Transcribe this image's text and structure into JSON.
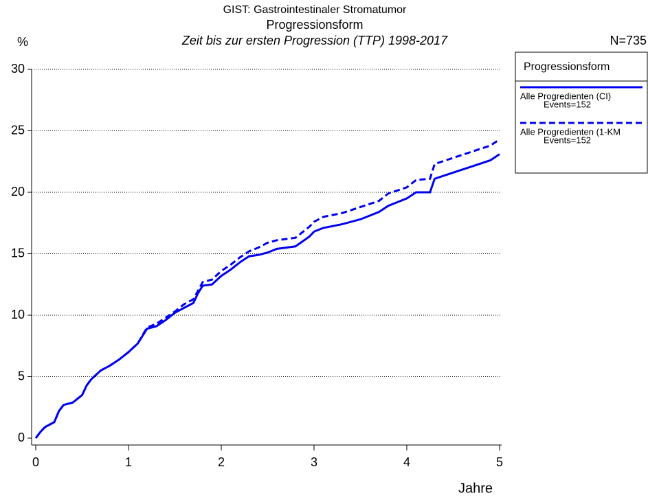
{
  "chart_data": {
    "type": "line",
    "title": "GIST: Gastrointestinaler Stromatumor",
    "subtitle": "Progressionsform",
    "subtitle2": "Zeit bis zur ersten Progression (TTP) 1998-2017",
    "y_label": "%",
    "x_label": "Jahre",
    "n_label": "N=735",
    "legend_title": "Progressionsform",
    "x": [
      0,
      0.05,
      0.1,
      0.2,
      0.25,
      0.3,
      0.4,
      0.5,
      0.55,
      0.6,
      0.7,
      0.8,
      0.9,
      1.0,
      1.1,
      1.2,
      1.3,
      1.4,
      1.5,
      1.6,
      1.7,
      1.75,
      1.8,
      1.9,
      2.0,
      2.1,
      2.2,
      2.3,
      2.4,
      2.5,
      2.6,
      2.8,
      2.95,
      3.0,
      3.1,
      3.3,
      3.5,
      3.7,
      3.8,
      4.0,
      4.1,
      4.25,
      4.3,
      4.5,
      4.7,
      4.9,
      5.0
    ],
    "series": [
      {
        "name": "Alle Progredienten (CI)",
        "events_label": "Events=152",
        "color": "#0000ee",
        "dash": false,
        "values": [
          0,
          0.5,
          0.9,
          1.3,
          2.2,
          2.7,
          2.9,
          3.5,
          4.3,
          4.8,
          5.5,
          5.9,
          6.4,
          7.0,
          7.7,
          8.9,
          9.1,
          9.6,
          10.2,
          10.6,
          11.0,
          11.8,
          12.4,
          12.5,
          13.2,
          13.7,
          14.3,
          14.8,
          14.9,
          15.1,
          15.4,
          15.6,
          16.4,
          16.8,
          17.1,
          17.4,
          17.8,
          18.4,
          18.9,
          19.5,
          20.0,
          20.0,
          21.1,
          21.6,
          22.1,
          22.6,
          23.1
        ]
      },
      {
        "name": "Alle Progredienten (1-KM",
        "events_label": "Events=152",
        "color": "#0000ee",
        "dash": true,
        "values": [
          0,
          0.5,
          0.9,
          1.3,
          2.2,
          2.7,
          2.9,
          3.5,
          4.3,
          4.8,
          5.5,
          5.9,
          6.4,
          7.0,
          7.7,
          9.0,
          9.3,
          9.8,
          10.3,
          10.9,
          11.3,
          12.0,
          12.7,
          12.9,
          13.6,
          14.1,
          14.7,
          15.2,
          15.5,
          15.9,
          16.1,
          16.3,
          17.2,
          17.6,
          18.0,
          18.3,
          18.8,
          19.3,
          19.9,
          20.4,
          21.0,
          21.1,
          22.3,
          22.8,
          23.3,
          23.8,
          24.3
        ]
      }
    ],
    "xlim": [
      0,
      5
    ],
    "xticks": [
      0,
      1,
      2,
      3,
      4,
      5
    ],
    "ylim": [
      0,
      30
    ],
    "yticks": [
      0,
      5,
      10,
      15,
      20,
      25,
      30
    ],
    "grid": true
  }
}
